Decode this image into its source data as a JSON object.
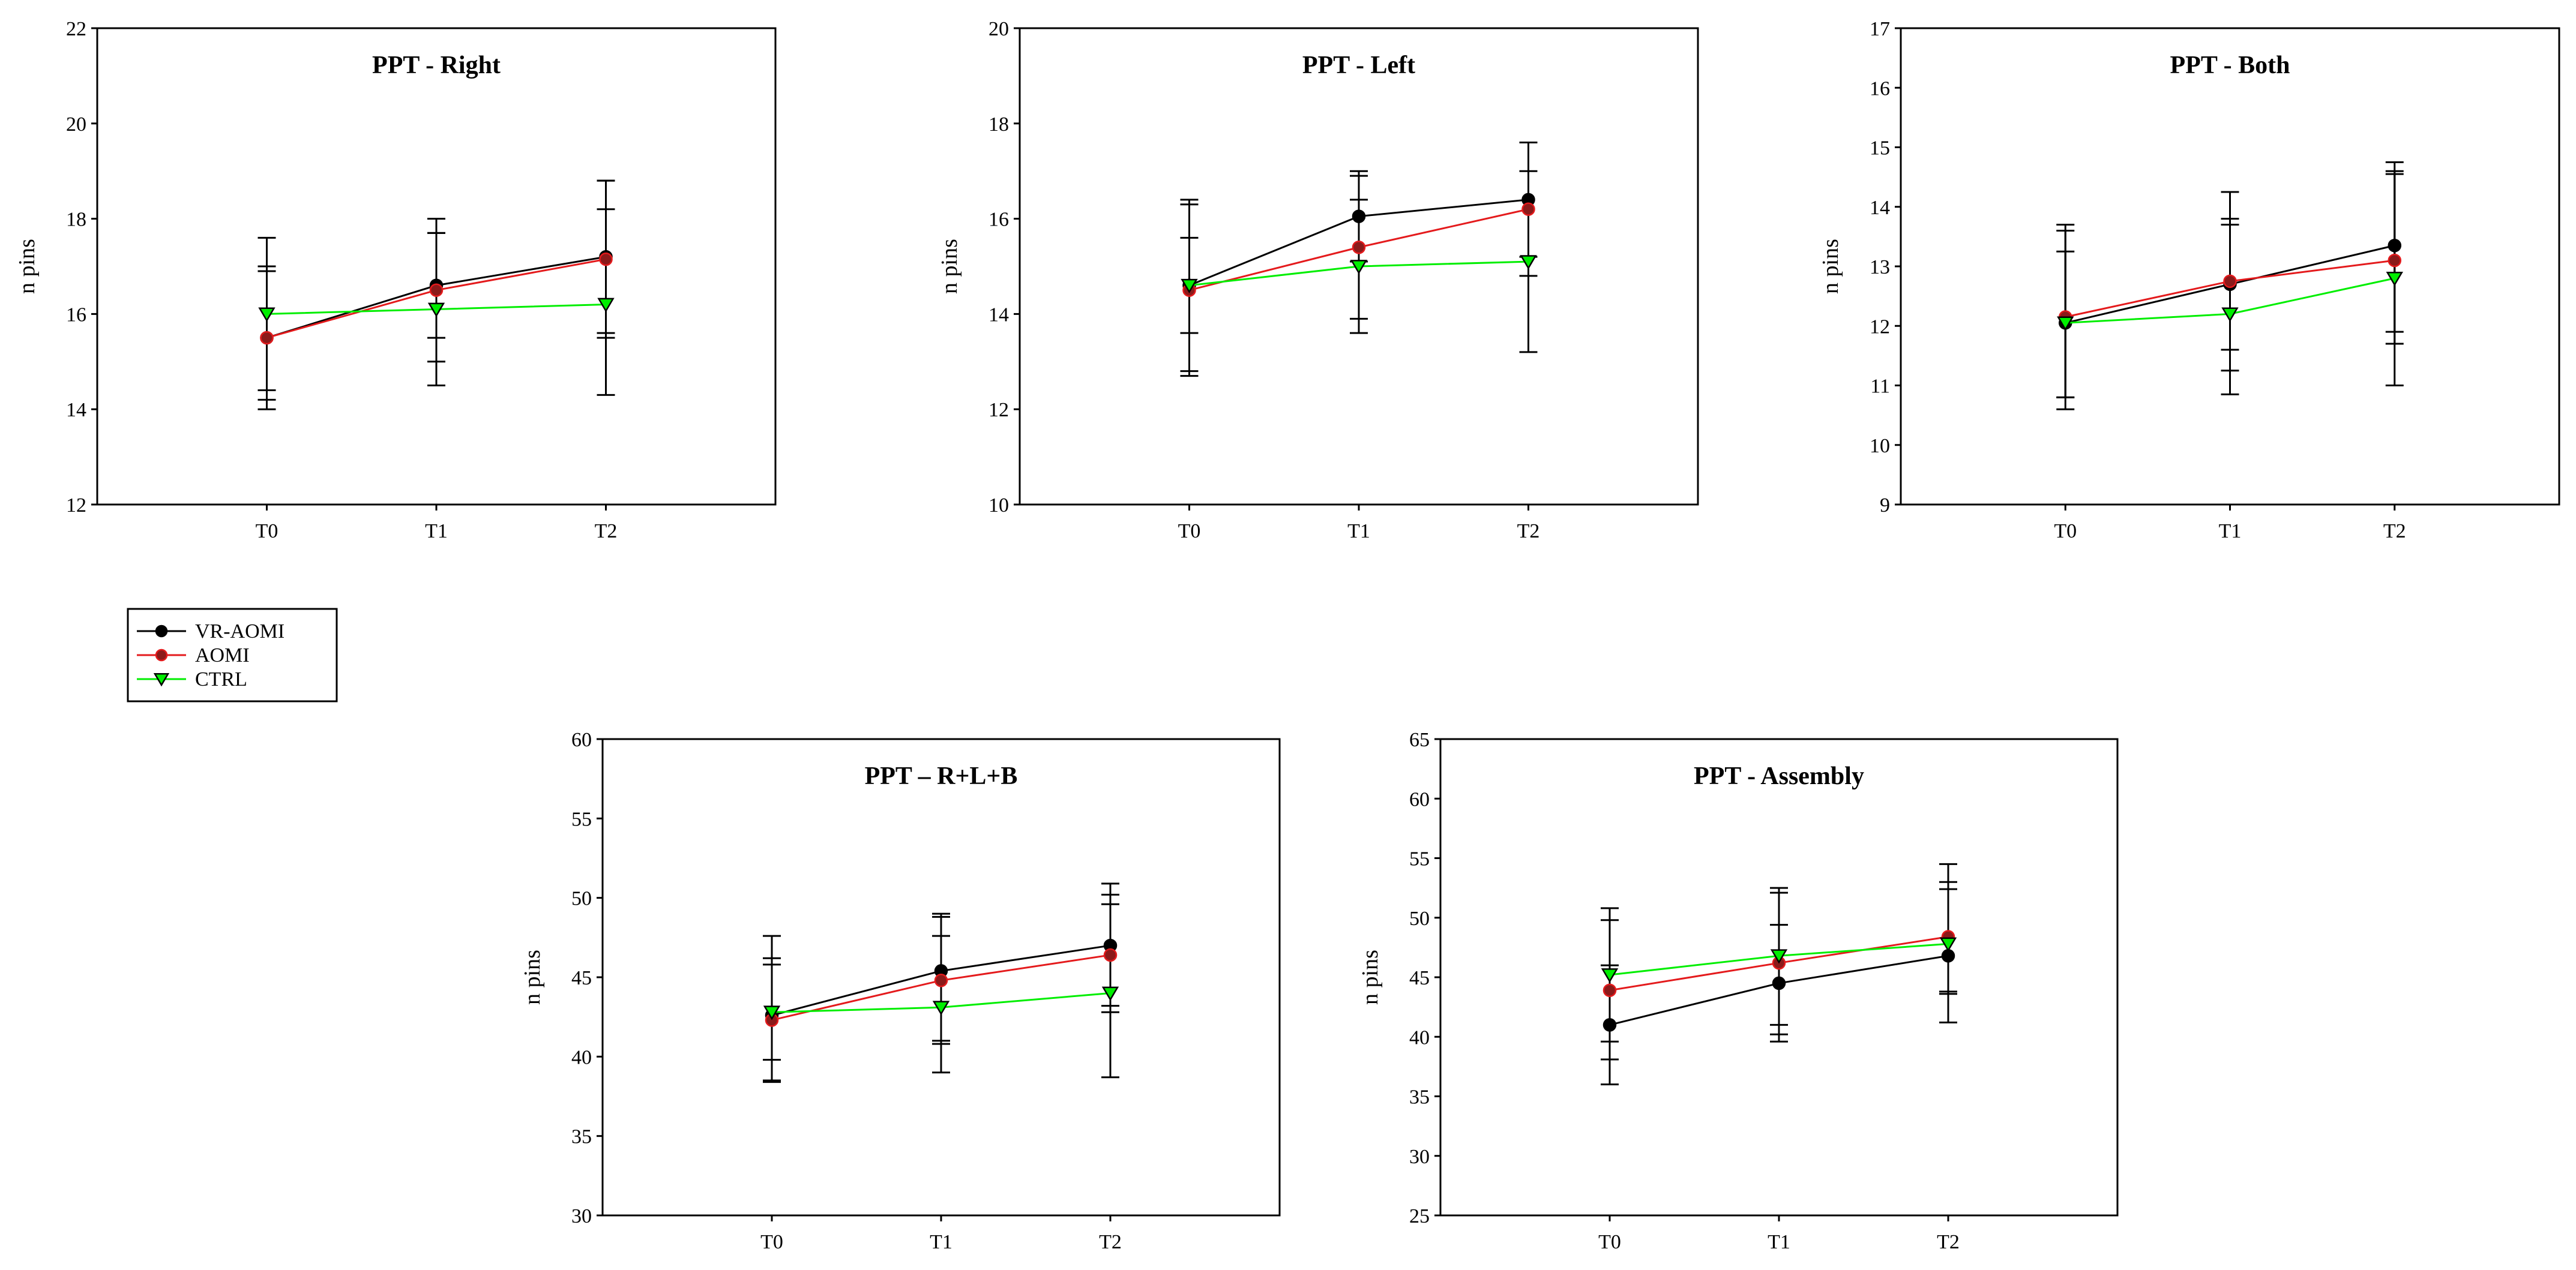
{
  "legend": [
    {
      "name": "VR-AOMI",
      "color": "#000000",
      "marker": "circle"
    },
    {
      "name": "AOMI",
      "color": "#e41a1c",
      "marker": "circle"
    },
    {
      "name": "CTRL",
      "color": "#00ee00",
      "marker": "triangle-down"
    }
  ],
  "chart_data": [
    {
      "type": "line",
      "title": "PPT - Right",
      "ylabel": "n pins",
      "xlabel": "",
      "categories": [
        "T0",
        "T1",
        "T2"
      ],
      "ylim": [
        12,
        22
      ],
      "yticks": [
        12,
        14,
        16,
        18,
        20,
        22
      ],
      "yticklabels": [
        "12",
        "14",
        "16",
        "18",
        "20",
        "22"
      ],
      "series": [
        {
          "name": "VR-AOMI",
          "values": [
            15.5,
            16.6,
            17.2
          ],
          "err_low": [
            14.0,
            15.5,
            15.6
          ],
          "err_high": [
            17.0,
            17.7,
            18.8
          ]
        },
        {
          "name": "AOMI",
          "values": [
            15.5,
            16.5,
            17.15
          ],
          "err_low": [
            14.2,
            15.0,
            15.5
          ],
          "err_high": [
            16.9,
            18.0,
            18.8
          ]
        },
        {
          "name": "CTRL",
          "values": [
            16.0,
            16.1,
            16.2
          ],
          "err_low": [
            14.4,
            14.5,
            14.3
          ],
          "err_high": [
            17.6,
            17.7,
            18.2
          ]
        }
      ]
    },
    {
      "type": "line",
      "title": "PPT - Left",
      "ylabel": "n pins",
      "xlabel": "",
      "categories": [
        "T0",
        "T1",
        "T2"
      ],
      "ylim": [
        10,
        20
      ],
      "yticks": [
        10,
        12,
        14,
        16,
        18,
        20
      ],
      "yticklabels": [
        "10",
        "12",
        "14",
        "16",
        "18",
        "20"
      ],
      "series": [
        {
          "name": "VR-AOMI",
          "values": [
            14.6,
            16.05,
            16.4
          ],
          "err_low": [
            12.8,
            15.1,
            15.2
          ],
          "err_high": [
            16.4,
            17.0,
            17.6
          ]
        },
        {
          "name": "AOMI",
          "values": [
            14.5,
            15.4,
            16.2
          ],
          "err_low": [
            12.7,
            13.9,
            14.8
          ],
          "err_high": [
            16.3,
            16.9,
            17.6
          ]
        },
        {
          "name": "CTRL",
          "values": [
            14.6,
            15.0,
            15.1
          ],
          "err_low": [
            13.6,
            13.6,
            13.2
          ],
          "err_high": [
            15.6,
            16.4,
            17.0
          ]
        }
      ]
    },
    {
      "type": "line",
      "title": "PPT - Both",
      "ylabel": "n pins",
      "xlabel": "",
      "categories": [
        "T0",
        "T1",
        "T2"
      ],
      "ylim": [
        9,
        17
      ],
      "yticks": [
        9,
        10,
        11,
        12,
        13,
        14,
        15,
        16,
        17
      ],
      "yticklabels": [
        "9",
        "10",
        "11",
        "12",
        "13",
        "14",
        "15",
        "16",
        "17"
      ],
      "series": [
        {
          "name": "VR-AOMI",
          "values": [
            12.05,
            12.7,
            13.35
          ],
          "err_low": [
            10.6,
            11.6,
            11.9
          ],
          "err_high": [
            13.6,
            13.8,
            14.75
          ]
        },
        {
          "name": "AOMI",
          "values": [
            12.15,
            12.75,
            13.1
          ],
          "err_low": [
            10.8,
            11.25,
            11.7
          ],
          "err_high": [
            13.7,
            14.25,
            14.55
          ]
        },
        {
          "name": "CTRL",
          "values": [
            12.05,
            12.2,
            12.8
          ],
          "err_low": [
            10.8,
            10.85,
            11.0
          ],
          "err_high": [
            13.25,
            13.7,
            14.6
          ]
        }
      ]
    },
    {
      "type": "line",
      "title": "PPT – R+L+B",
      "ylabel": "n pins",
      "xlabel": "",
      "categories": [
        "T0",
        "T1",
        "T2"
      ],
      "ylim": [
        30,
        60
      ],
      "yticks": [
        30,
        35,
        40,
        45,
        50,
        55,
        60
      ],
      "yticklabels": [
        "30",
        "35",
        "40",
        "45",
        "50",
        "55",
        "60"
      ],
      "series": [
        {
          "name": "VR-AOMI",
          "values": [
            42.6,
            45.4,
            47.0
          ],
          "err_low": [
            38.4,
            41.0,
            43.2
          ],
          "err_high": [
            47.6,
            49.0,
            50.9
          ]
        },
        {
          "name": "AOMI",
          "values": [
            42.3,
            44.8,
            46.4
          ],
          "err_low": [
            38.5,
            39.0,
            42.8
          ],
          "err_high": [
            46.2,
            48.8,
            50.2
          ]
        },
        {
          "name": "CTRL",
          "values": [
            42.8,
            43.1,
            44.0
          ],
          "err_low": [
            39.8,
            40.8,
            38.7
          ],
          "err_high": [
            45.8,
            47.6,
            49.6
          ]
        }
      ]
    },
    {
      "type": "line",
      "title": "PPT - Assembly",
      "ylabel": "n pins",
      "xlabel": "",
      "categories": [
        "T0",
        "T1",
        "T2"
      ],
      "ylim": [
        25,
        65
      ],
      "yticks": [
        25,
        30,
        35,
        40,
        45,
        50,
        55,
        60,
        65
      ],
      "yticklabels": [
        "25",
        "30",
        "35",
        "40",
        "45",
        "50",
        "55",
        "60",
        "65"
      ],
      "series": [
        {
          "name": "VR-AOMI",
          "values": [
            41.0,
            44.5,
            46.8
          ],
          "err_low": [
            36.0,
            39.6,
            41.2
          ],
          "err_high": [
            46.0,
            49.4,
            52.4
          ]
        },
        {
          "name": "AOMI",
          "values": [
            43.9,
            46.2,
            48.4
          ],
          "err_low": [
            38.1,
            40.2,
            43.8
          ],
          "err_high": [
            49.8,
            52.1,
            53.0
          ]
        },
        {
          "name": "CTRL",
          "values": [
            45.2,
            46.8,
            47.8
          ],
          "err_low": [
            39.6,
            41.0,
            43.6
          ],
          "err_high": [
            50.8,
            52.5,
            54.5
          ]
        }
      ]
    }
  ]
}
